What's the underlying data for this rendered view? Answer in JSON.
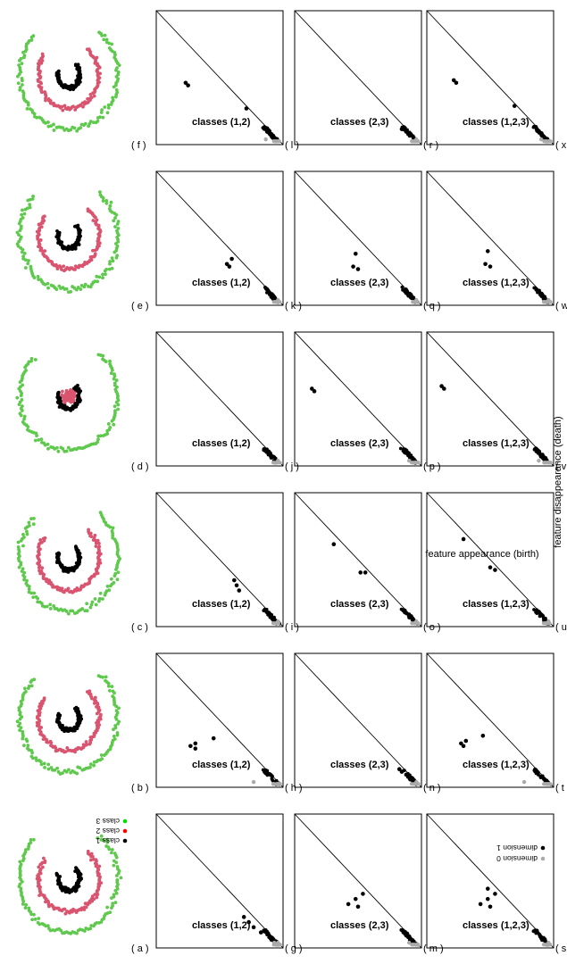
{
  "figure": {
    "axis_caption": "feature disappearance (death)",
    "axis_caption_2": "feature appearance (birth)"
  },
  "legends": {
    "classes": [
      {
        "label": "class 1",
        "color": "#000000"
      },
      {
        "label": "class 2",
        "color": "#ff0000"
      },
      {
        "label": "class 3",
        "color": "#00dd00"
      }
    ],
    "dimensions": [
      {
        "label": "dimension 0",
        "color": "#aaaaaa"
      },
      {
        "label": "dimension 1",
        "color": "#000000"
      }
    ]
  },
  "colors": {
    "class1": "#000000",
    "class2": "#d9546f",
    "class3": "#5fc94d",
    "dim0": "#aaaaaa",
    "dim1": "#000000",
    "frame": "#000000"
  },
  "chart_data": {
    "type": "scatter",
    "datasets": [
      {
        "panel": "(a)",
        "variant": "a"
      },
      {
        "panel": "(b)",
        "variant": "b"
      },
      {
        "panel": "(c)",
        "variant": "c"
      },
      {
        "panel": "(d)",
        "variant": "d"
      },
      {
        "panel": "(e)",
        "variant": "e"
      },
      {
        "panel": "(f)",
        "variant": "f"
      }
    ],
    "persistence_rows": [
      {
        "label": "classes (1,2)",
        "panels": [
          {
            "panel": "(g)",
            "dim0": [
              [
                0.02,
                0.02
              ],
              [
                0.02,
                0.05
              ]
            ],
            "dim1": [
              [
                0.18,
                0.26
              ],
              [
                0.14,
                0.22
              ],
              [
                0.22,
                0.3
              ],
              [
                0.1,
                0.16
              ]
            ]
          },
          {
            "panel": "(h)",
            "dim0": [
              [
                0.02,
                0.22
              ]
            ],
            "dim1": [
              [
                0.28,
                0.7
              ],
              [
                0.3,
                0.74
              ],
              [
                0.32,
                0.7
              ],
              [
                0.36,
                0.55
              ]
            ]
          },
          {
            "panel": "(i)",
            "dim0": [
              [
                0.02,
                0.02
              ]
            ],
            "dim1": [
              [
                0.26,
                0.34
              ],
              [
                0.3,
                0.36
              ],
              [
                0.34,
                0.38
              ]
            ]
          },
          {
            "panel": "(j)",
            "dim0": [
              [
                0.02,
                0.02
              ]
            ],
            "dim1": [
              [
                0.06,
                0.08
              ],
              [
                0.08,
                0.1
              ]
            ]
          },
          {
            "panel": "(k)",
            "dim0": [
              [
                0.02,
                0.02
              ]
            ],
            "dim1": [
              [
                0.28,
                0.42
              ],
              [
                0.3,
                0.44
              ],
              [
                0.34,
                0.4
              ]
            ]
          },
          {
            "panel": "(l)",
            "dim0": [
              [
                0.02,
                0.12
              ]
            ],
            "dim1": [
              [
                0.44,
                0.76
              ],
              [
                0.46,
                0.78
              ],
              [
                0.26,
                0.28
              ]
            ]
          }
        ]
      },
      {
        "label": "classes (2,3)",
        "panels": [
          {
            "panel": "(m)",
            "dim0": [
              [
                0.02,
                0.08
              ]
            ],
            "dim1": [
              [
                0.3,
                0.5
              ],
              [
                0.32,
                0.58
              ],
              [
                0.36,
                0.52
              ],
              [
                0.4,
                0.46
              ]
            ]
          },
          {
            "panel": "(n)",
            "dim0": [
              [
                0.02,
                0.02
              ]
            ],
            "dim1": [
              [
                0.1,
                0.14
              ],
              [
                0.12,
                0.16
              ]
            ]
          },
          {
            "panel": "(o)",
            "dim0": [
              [
                0.02,
                0.02
              ]
            ],
            "dim1": [
              [
                0.4,
                0.44
              ],
              [
                0.4,
                0.48
              ],
              [
                0.62,
                0.7
              ]
            ]
          },
          {
            "panel": "(p)",
            "dim0": [
              [
                0.02,
                0.08
              ]
            ],
            "dim1": [
              [
                0.56,
                0.86
              ],
              [
                0.58,
                0.88
              ]
            ]
          },
          {
            "panel": "(q)",
            "dim0": [
              [
                0.02,
                0.02
              ]
            ],
            "dim1": [
              [
                0.26,
                0.5
              ],
              [
                0.28,
                0.54
              ],
              [
                0.38,
                0.52
              ]
            ]
          },
          {
            "panel": "(r)",
            "dim0": [
              [
                0.02,
                0.02
              ]
            ],
            "dim1": [
              [
                0.1,
                0.14
              ]
            ]
          }
        ]
      },
      {
        "label": "classes (1,2,3)",
        "panels": [
          {
            "panel": "(s)",
            "dim0": [
              [
                0.02,
                0.02
              ]
            ],
            "dim1": [
              [
                0.3,
                0.5
              ],
              [
                0.32,
                0.58
              ],
              [
                0.36,
                0.52
              ],
              [
                0.4,
                0.46
              ],
              [
                0.44,
                0.52
              ]
            ]
          },
          {
            "panel": "(t)",
            "dim0": [
              [
                0.02,
                0.22
              ]
            ],
            "dim1": [
              [
                0.3,
                0.72
              ],
              [
                0.32,
                0.74
              ],
              [
                0.34,
                0.7
              ],
              [
                0.38,
                0.56
              ]
            ]
          },
          {
            "panel": "(u)",
            "dim0": [
              [
                0.02,
                0.02
              ]
            ],
            "dim1": [
              [
                0.42,
                0.46
              ],
              [
                0.44,
                0.5
              ],
              [
                0.66,
                0.72
              ]
            ]
          },
          {
            "panel": "(v)",
            "dim0": [
              [
                0.02,
                0.1
              ]
            ],
            "dim1": [
              [
                0.58,
                0.88
              ],
              [
                0.6,
                0.9
              ]
            ]
          },
          {
            "panel": "(w)",
            "dim0": [
              [
                0.02,
                0.02
              ]
            ],
            "dim1": [
              [
                0.28,
                0.5
              ],
              [
                0.3,
                0.54
              ],
              [
                0.4,
                0.52
              ]
            ]
          },
          {
            "panel": "(x)",
            "dim0": [
              [
                0.02,
                0.08
              ]
            ],
            "dim1": [
              [
                0.46,
                0.78
              ],
              [
                0.48,
                0.8
              ],
              [
                0.28,
                0.3
              ]
            ]
          }
        ]
      }
    ]
  }
}
